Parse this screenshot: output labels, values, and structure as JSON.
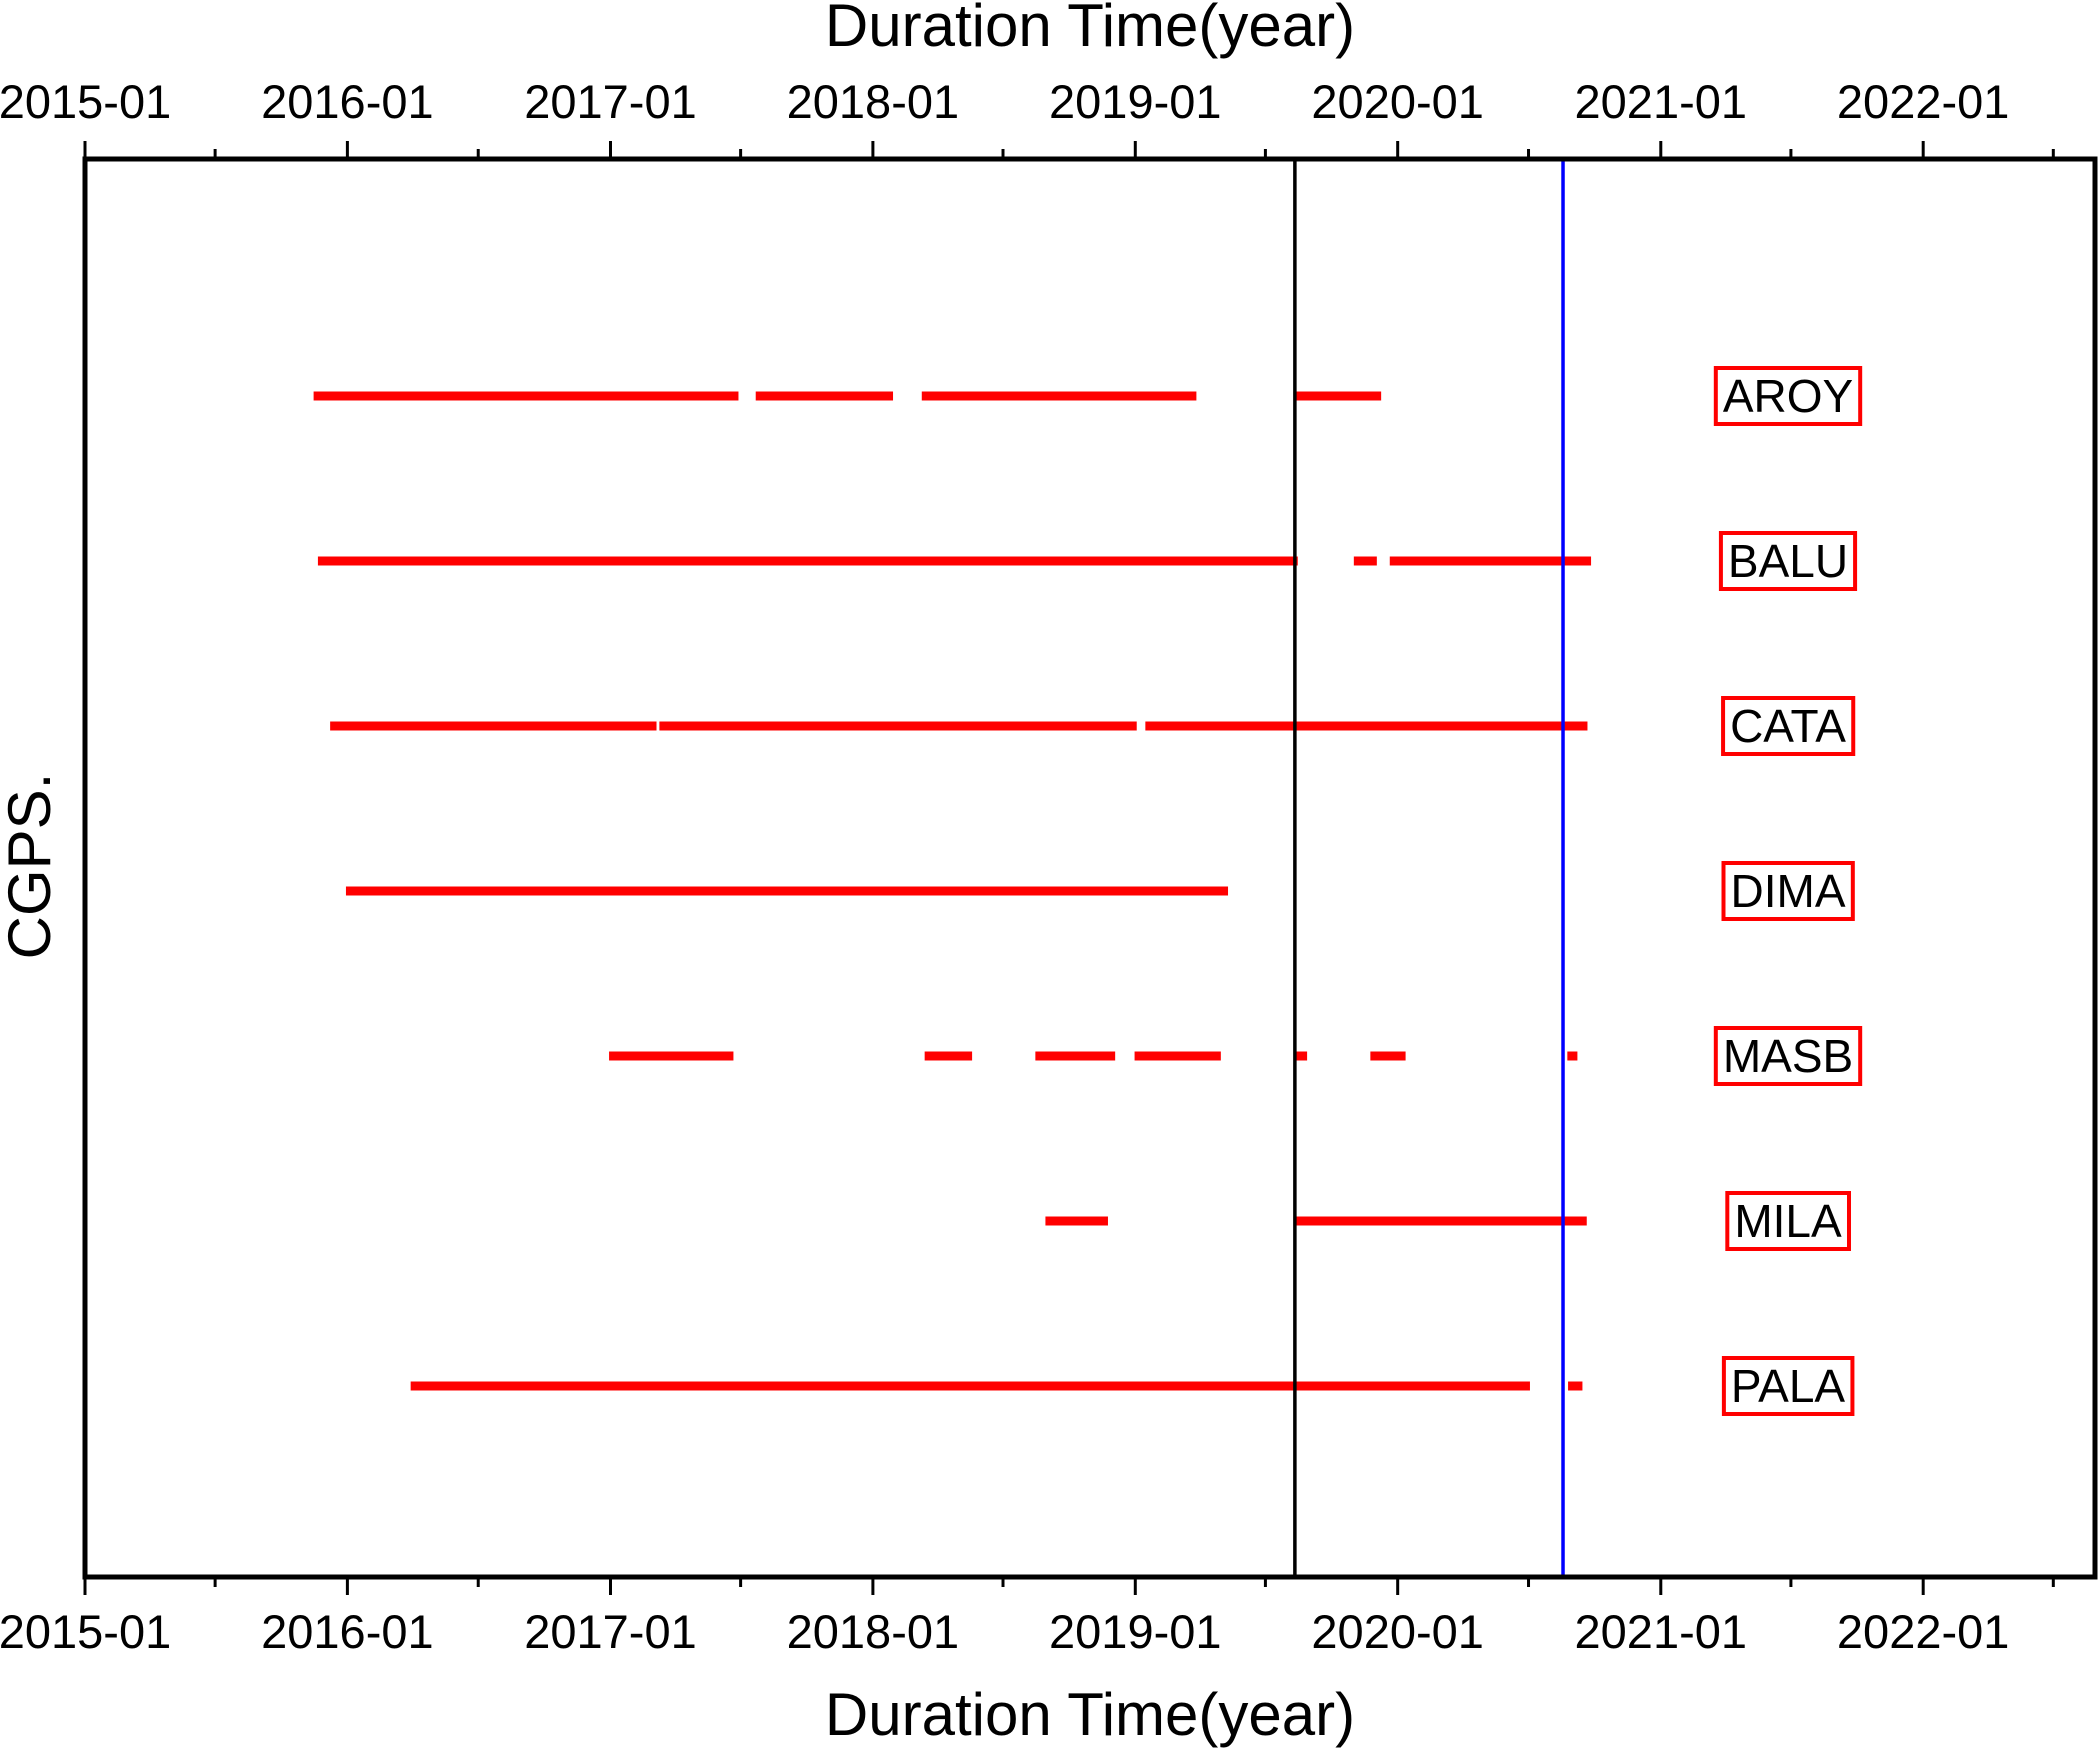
{
  "chart_data": {
    "type": "timeline",
    "title": "",
    "xlabel_top": "Duration Time(year)",
    "xlabel_bottom": "Duration Time(year)",
    "ylabel": "CGPS.",
    "xlim": [
      "2015-01-01",
      "2022-08-28"
    ],
    "x_ticks": [
      "2015-01",
      "2016-01",
      "2017-01",
      "2018-01",
      "2019-01",
      "2020-01",
      "2021-01",
      "2022-01"
    ],
    "grid": false,
    "segment_color": "#ff0000",
    "reference_lines": [
      {
        "date": "2019-08-11",
        "color": "#000000"
      },
      {
        "date": "2020-08-18",
        "color": "#0000ff"
      }
    ],
    "series": [
      {
        "name": "AROY",
        "segments": [
          [
            "2015-11-15",
            "2017-06-28"
          ],
          [
            "2017-07-22",
            "2018-01-29"
          ],
          [
            "2018-03-10",
            "2019-03-27"
          ],
          [
            "2019-08-09",
            "2019-12-09"
          ]
        ]
      },
      {
        "name": "BALU",
        "segments": [
          [
            "2015-11-21",
            "2019-08-15"
          ],
          [
            "2019-11-01",
            "2019-12-03"
          ],
          [
            "2019-12-21",
            "2020-09-26"
          ]
        ]
      },
      {
        "name": "CATA",
        "segments": [
          [
            "2015-12-08",
            "2017-03-06"
          ],
          [
            "2017-03-10",
            "2019-01-03"
          ],
          [
            "2019-01-15",
            "2020-09-21"
          ]
        ]
      },
      {
        "name": "DIMA",
        "segments": [
          [
            "2015-12-30",
            "2019-05-10"
          ]
        ]
      },
      {
        "name": "MASB",
        "segments": [
          [
            "2016-12-30",
            "2017-06-21"
          ],
          [
            "2018-03-14",
            "2018-05-19"
          ],
          [
            "2018-08-15",
            "2018-12-04"
          ],
          [
            "2018-12-31",
            "2019-04-30"
          ],
          [
            "2019-08-12",
            "2019-08-28"
          ],
          [
            "2019-11-24",
            "2020-01-12"
          ],
          [
            "2020-08-24",
            "2020-09-07"
          ]
        ]
      },
      {
        "name": "MILA",
        "segments": [
          [
            "2018-08-29",
            "2018-11-24"
          ],
          [
            "2019-08-09",
            "2020-09-20"
          ]
        ]
      },
      {
        "name": "PALA",
        "segments": [
          [
            "2016-03-29",
            "2020-07-03"
          ],
          [
            "2020-08-25",
            "2020-09-14"
          ]
        ]
      }
    ]
  }
}
